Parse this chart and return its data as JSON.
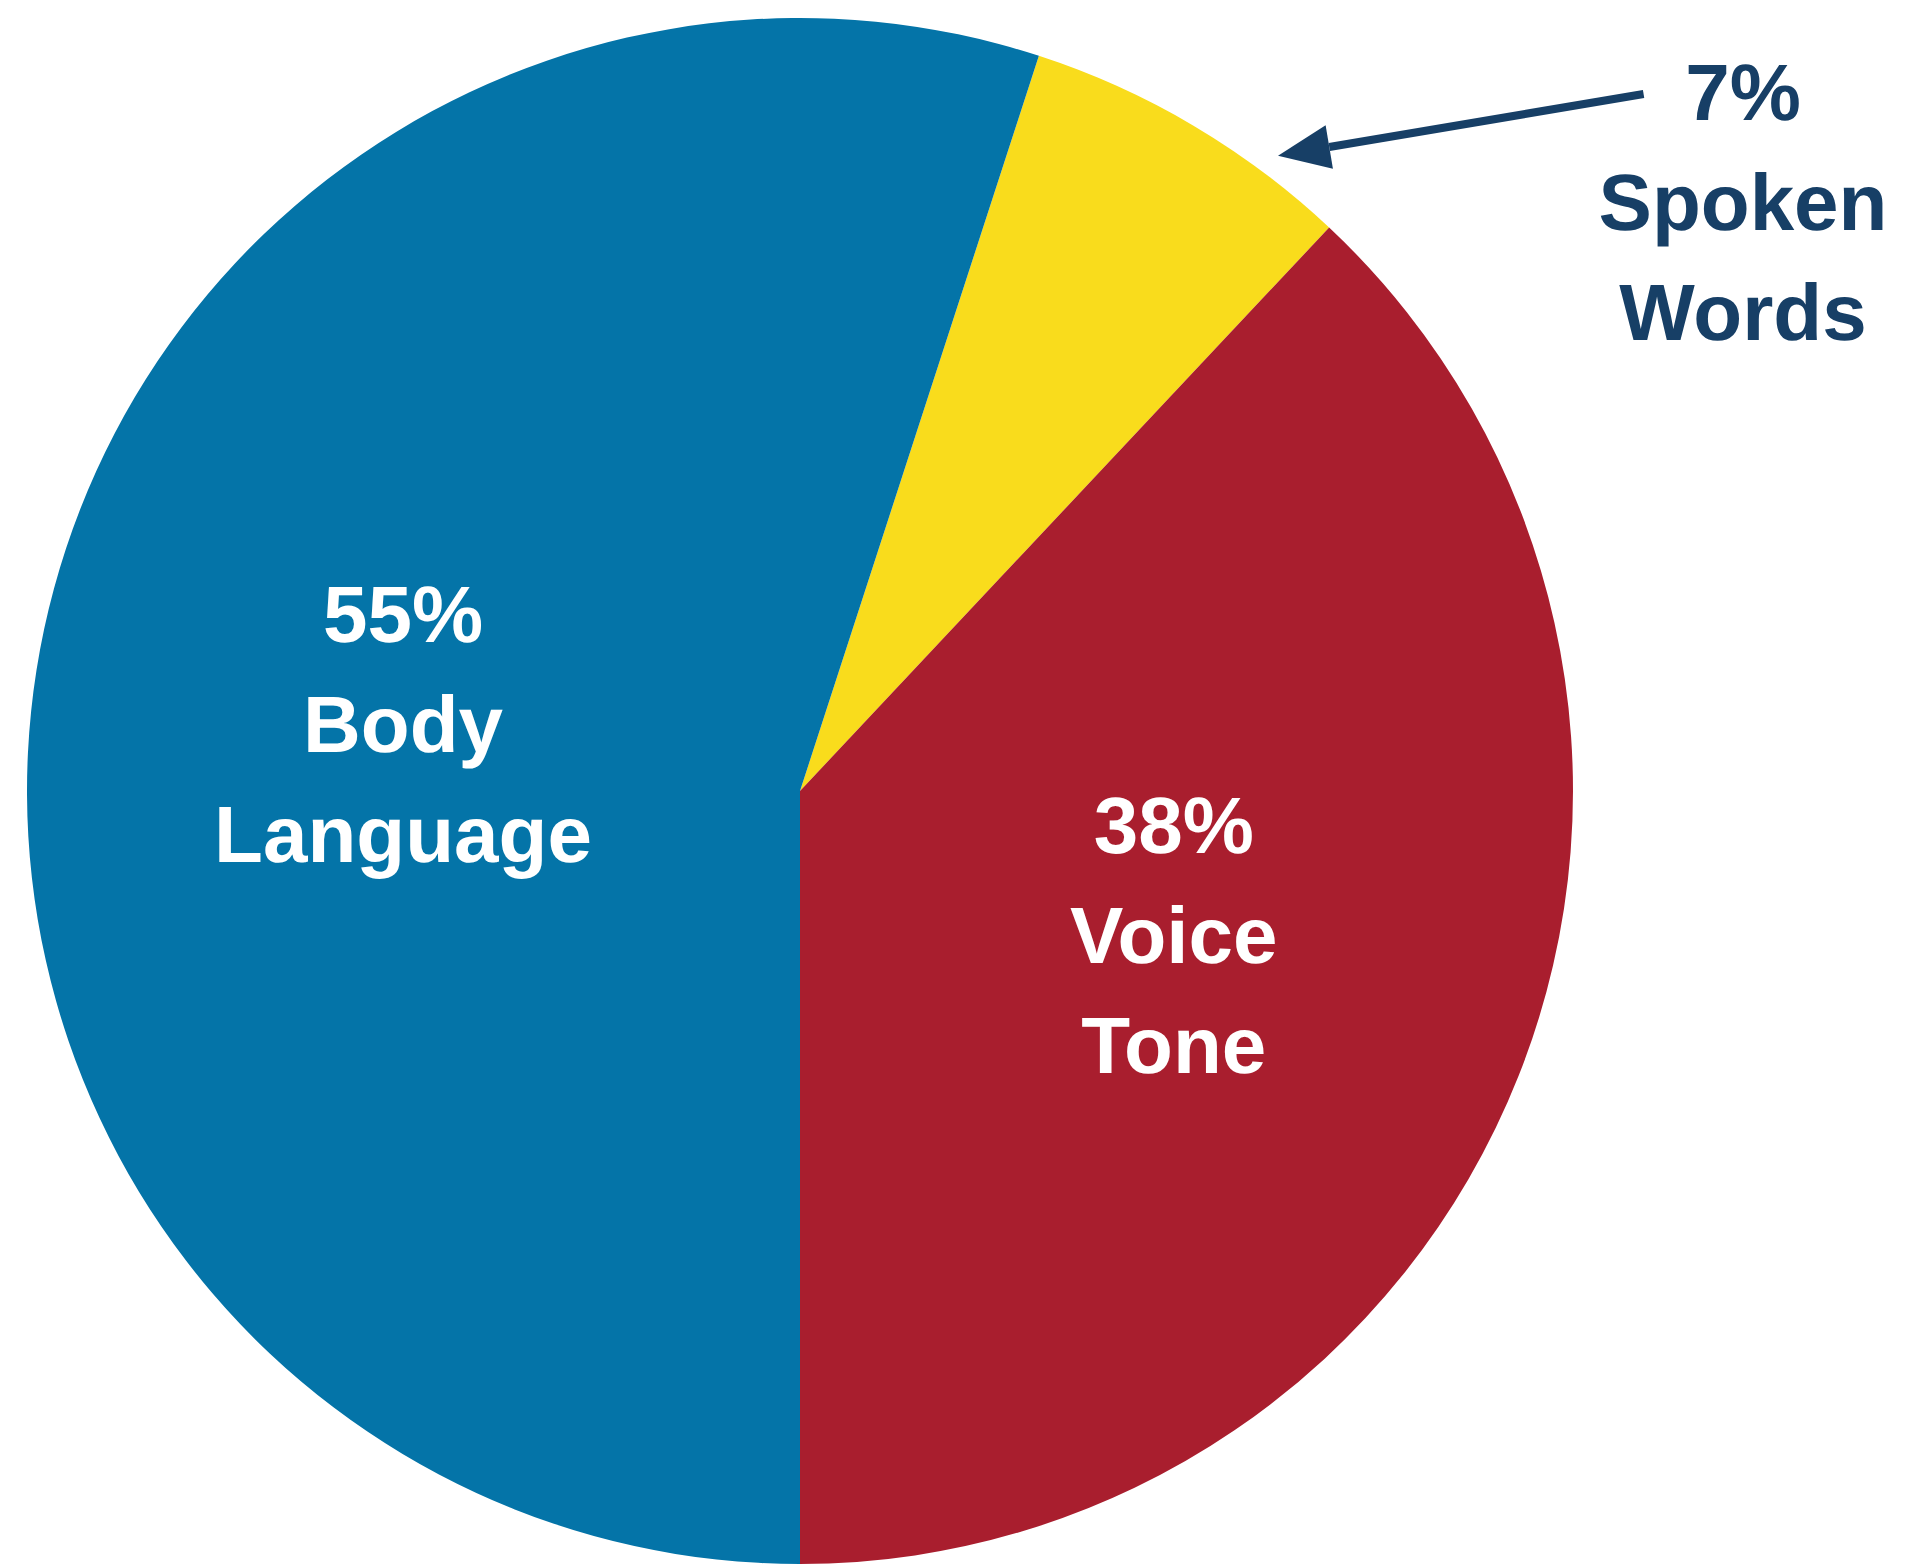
{
  "chart_data": {
    "type": "pie",
    "categories": [
      "Spoken Words",
      "Voice Tone",
      "Body Language"
    ],
    "values": [
      7,
      38,
      55
    ],
    "colors": [
      "#f9dc1c",
      "#a91e2e",
      "#0474a8"
    ],
    "value_labels": [
      "7%",
      "38%",
      "55%"
    ],
    "legend": false
  }
}
